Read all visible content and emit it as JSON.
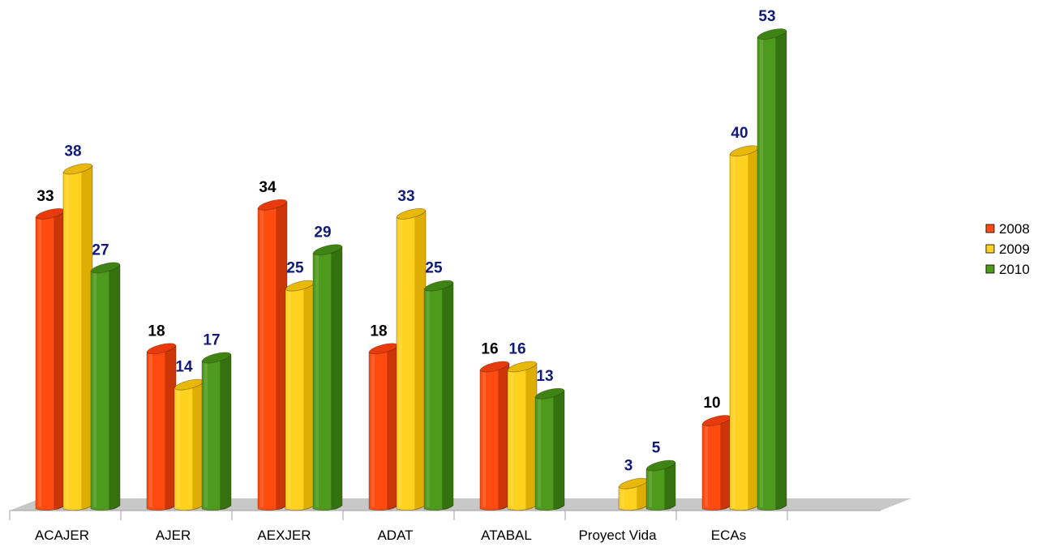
{
  "chart_data": {
    "type": "bar",
    "categories": [
      "ACAJER",
      "AJER",
      "AEXJER",
      "ADAT",
      "ATABAL",
      "Proyect Vida",
      "ECAs"
    ],
    "series": [
      {
        "name": "2008",
        "values": [
          33,
          18,
          34,
          18,
          16,
          null,
          10
        ]
      },
      {
        "name": "2009",
        "values": [
          38,
          14,
          25,
          33,
          16,
          3,
          40
        ]
      },
      {
        "name": "2010",
        "values": [
          27,
          17,
          29,
          25,
          13,
          5,
          53
        ]
      }
    ],
    "value_labels": {
      "2008": [
        "33",
        "18",
        "34",
        "18",
        "16",
        "",
        "10"
      ],
      "2009": [
        "38",
        "14",
        "25",
        "33",
        "16",
        "3",
        "40"
      ],
      "2010": [
        "27",
        "17",
        "29",
        "25",
        "13",
        "5",
        "53"
      ]
    },
    "ylim": [
      0,
      53
    ],
    "grid": false,
    "legend_position": "right",
    "style": "3d-cylinder",
    "colors": {
      "2008": {
        "front": "#ff4a10",
        "side": "#c23106",
        "top": "#e83a0c"
      },
      "2009": {
        "front": "#ffd21f",
        "side": "#d9a800",
        "top": "#e8b90a"
      },
      "2010": {
        "front": "#4d9a1c",
        "side": "#2f6b0c",
        "top": "#3e8415"
      }
    },
    "label_colors": {
      "2008": "#000000",
      "2009": "#0f1a7a",
      "2010": "#0f1a7a"
    },
    "floor_color": "#c8c8c8"
  }
}
